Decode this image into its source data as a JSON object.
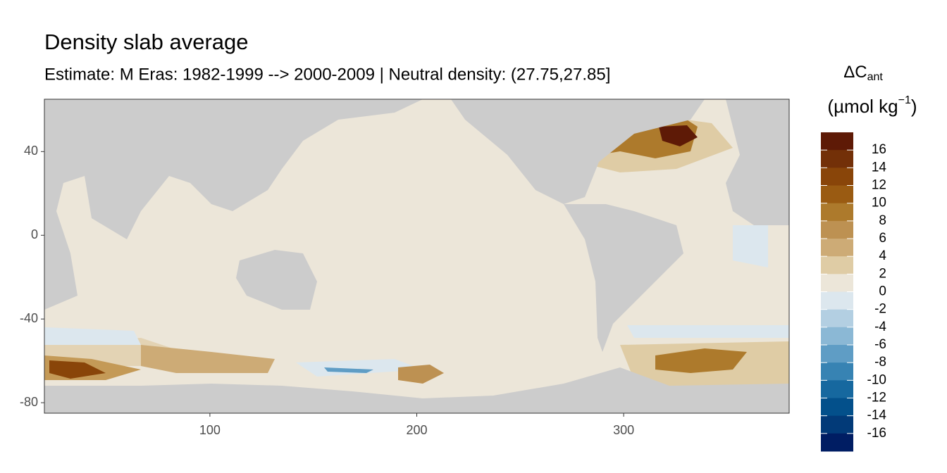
{
  "chart_data": {
    "type": "map",
    "title": "Density slab average",
    "subtitle": "Estimate: M Eras: 1982-1999 --> 2000-2009 | Neutral density: (27.75,27.85]",
    "xlim": [
      20,
      380
    ],
    "xticks": [
      100,
      200,
      300
    ],
    "ylim": [
      -85,
      65
    ],
    "yticks": [
      40,
      0,
      -40,
      -80
    ],
    "legend": {
      "title_main": "ΔC",
      "title_sub": "ant",
      "title_unit": "(µmol kg",
      "title_sup": "−1",
      "title_close": ")",
      "clim": [
        -18,
        18
      ],
      "breaks": [
        16,
        14,
        12,
        10,
        8,
        6,
        4,
        2,
        0,
        -2,
        -4,
        -6,
        -8,
        -10,
        -12,
        -14,
        -16
      ],
      "colors": [
        "#5e1a06",
        "#733008",
        "#894509",
        "#9a5b12",
        "#ad7a2c",
        "#bd9152",
        "#cdab76",
        "#dfcca5",
        "#ece6d9",
        "#dce7ee",
        "#b3cfe2",
        "#8bb8d5",
        "#5f9dc5",
        "#3783b3",
        "#16689f",
        "#03508b",
        "#023a78",
        "#001d63"
      ]
    }
  }
}
